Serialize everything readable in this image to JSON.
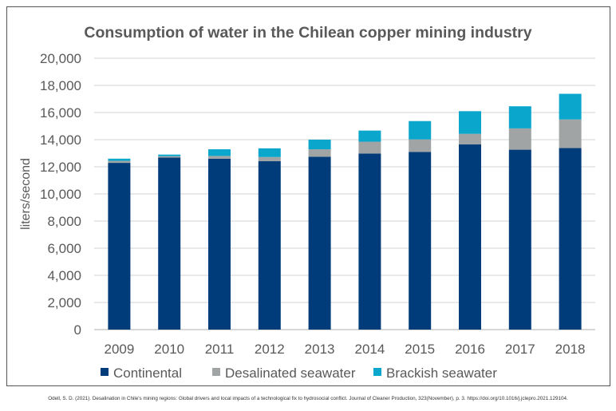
{
  "chart_data": {
    "type": "bar",
    "stacked": true,
    "title": "Consumption of water in the Chilean copper mining industry",
    "xlabel": "",
    "ylabel": "liters/second",
    "ylim": [
      0,
      20000
    ],
    "yticks": [
      0,
      2000,
      4000,
      6000,
      8000,
      10000,
      12000,
      14000,
      16000,
      18000,
      20000
    ],
    "ytick_labels": [
      "0",
      "2,000",
      "4,000",
      "6,000",
      "8,000",
      "10,000",
      "12,000",
      "14,000",
      "16,000",
      "18,000",
      "20,000"
    ],
    "grid": true,
    "legend": "bottom",
    "categories": [
      "2009",
      "2010",
      "2011",
      "2012",
      "2013",
      "2014",
      "2015",
      "2016",
      "2017",
      "2018"
    ],
    "series": [
      {
        "name": "Continental",
        "color": "#003b7a",
        "values": [
          12290,
          12680,
          12600,
          12410,
          12740,
          12970,
          13090,
          13660,
          13260,
          13380
        ]
      },
      {
        "name": "Desalinated seawater",
        "color": "#a0a4a4",
        "values": [
          150,
          100,
          200,
          310,
          550,
          880,
          930,
          770,
          1570,
          2110
        ]
      },
      {
        "name": "Brackish seawater",
        "color": "#0aa6cc",
        "values": [
          160,
          120,
          490,
          640,
          710,
          820,
          1350,
          1670,
          1630,
          1890
        ]
      }
    ]
  },
  "credit": "Odell, S. D. (2021). Desalination in Chile's mining regions: Global drivers and local impacts of a technological fix to hydrosocial conflict. Journal of Cleaner Production, 323(November), p. 3. https://doi.org/10.1016/j.jclepro.2021.129104."
}
